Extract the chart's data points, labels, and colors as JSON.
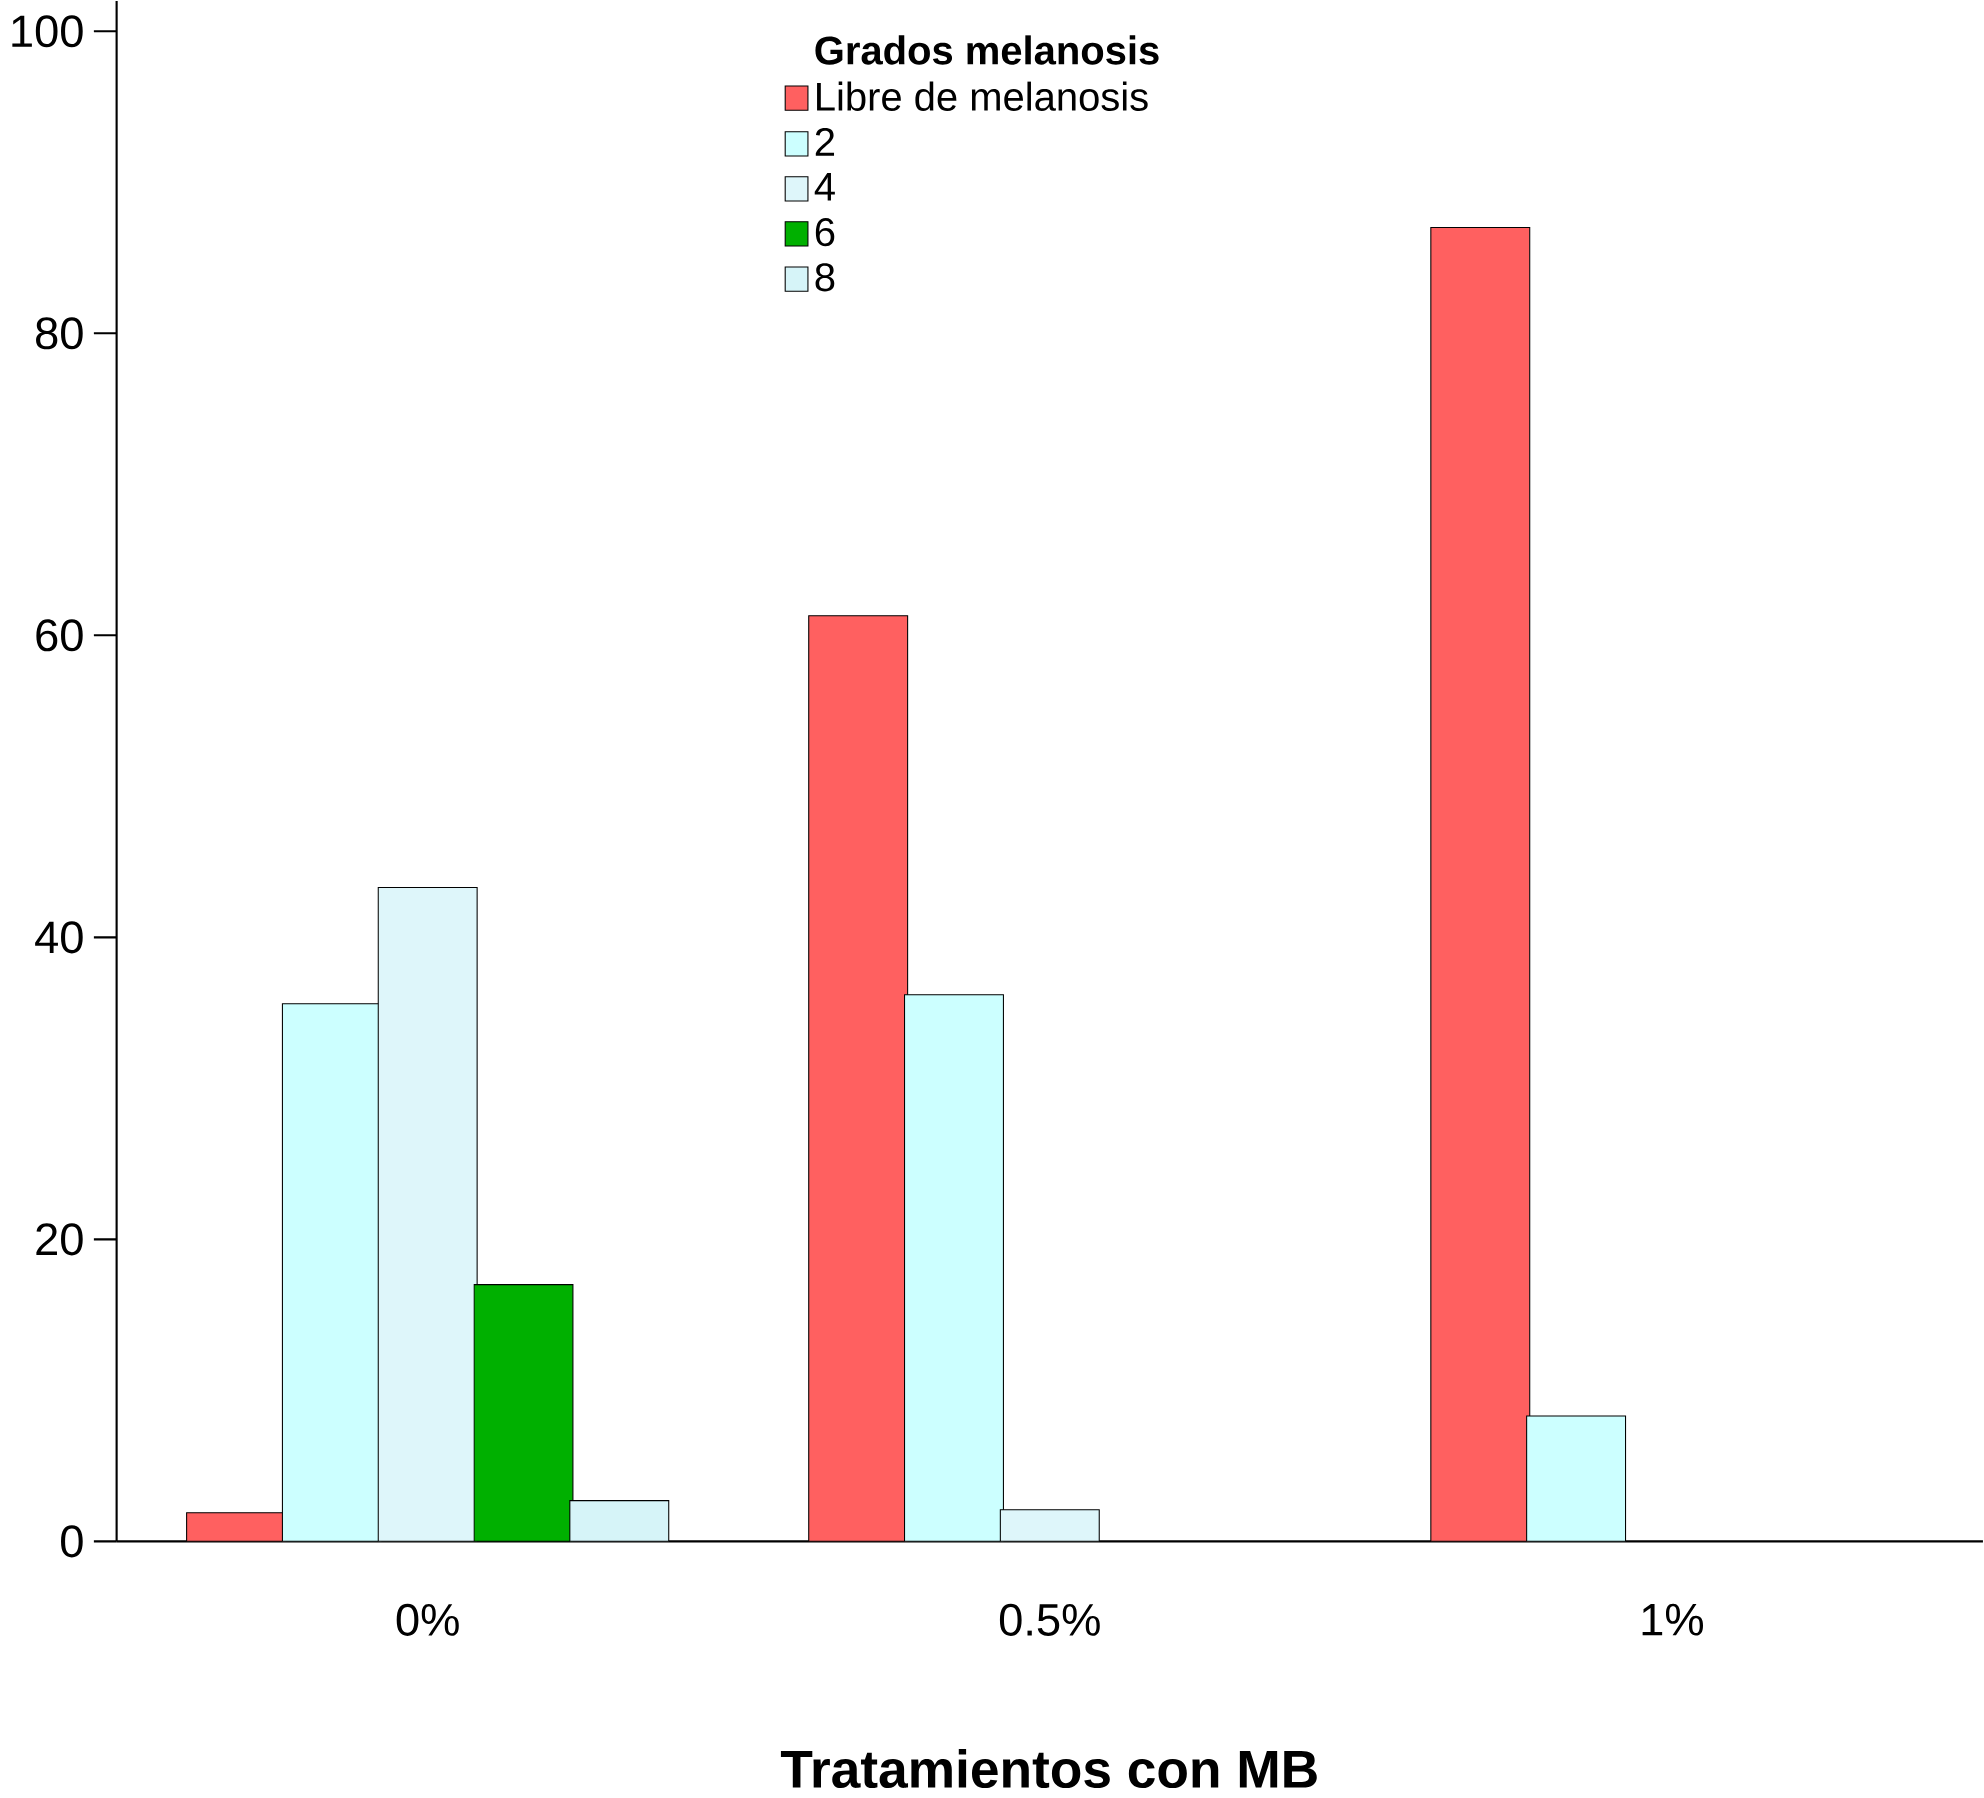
{
  "chart_data": {
    "type": "bar",
    "xlabel": "Tratamientos con MB",
    "legend_title": "Grados melanosis",
    "categories": [
      "0%",
      "0.5%",
      "1%"
    ],
    "series": [
      {
        "name": "Libre de melanosis",
        "color": "#ff6060",
        "values": [
          1.9,
          61.3,
          87
        ]
      },
      {
        "name": "2",
        "color": "#ccffff",
        "values": [
          35.6,
          36.2,
          8.3
        ]
      },
      {
        "name": "4",
        "color": "#def6fa",
        "values": [
          43.3,
          2.1,
          null
        ]
      },
      {
        "name": "6",
        "color": "#00b000",
        "values": [
          17,
          null,
          null
        ]
      },
      {
        "name": "8",
        "color": "#d6f4f8",
        "values": [
          2.7,
          null,
          null
        ]
      }
    ],
    "ylim": [
      0,
      102
    ],
    "yticks": [
      0,
      20,
      40,
      60,
      80,
      100
    ],
    "legend": "top",
    "grid": false
  }
}
